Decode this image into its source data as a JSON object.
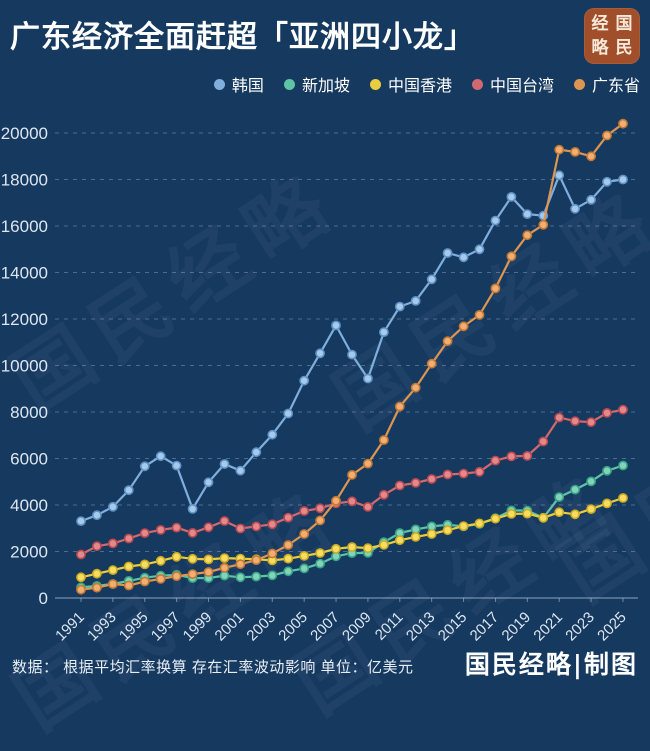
{
  "header": {
    "title": "广东经济全面赶超「亚洲四小龙」"
  },
  "seal": {
    "name": "国民经略",
    "chars": [
      "经",
      "国",
      "略",
      "民"
    ],
    "bg_color": "#a04f2a"
  },
  "watermark": {
    "text": "国民经略"
  },
  "legend": {
    "items": [
      "韩国",
      "新加坡",
      "中国香港",
      "中国台湾",
      "广东省"
    ]
  },
  "footer": {
    "note": "数据： 根据平均汇率换算 存在汇率波动影响 单位：亿美元",
    "credit": "国民经略|制图"
  },
  "chart_data": {
    "type": "line",
    "title": "广东经济全面赶超「亚洲四小龙」",
    "unit": "亿美元",
    "legend_position": "top-right",
    "grid": "horizontal-dashed",
    "ylim": [
      0,
      20000
    ],
    "ytick_step": 2000,
    "x": [
      1991,
      1992,
      1993,
      1994,
      1995,
      1996,
      1997,
      1998,
      1999,
      2000,
      2001,
      2002,
      2003,
      2004,
      2005,
      2006,
      2007,
      2008,
      2009,
      2010,
      2011,
      2012,
      2013,
      2014,
      2015,
      2016,
      2017,
      2018,
      2019,
      2020,
      2021,
      2022,
      2023,
      2024,
      2025
    ],
    "x_tick_labels": [
      "1991",
      "1993",
      "1995",
      "1997",
      "1999",
      "2001",
      "2003",
      "2005",
      "2007",
      "2009",
      "2011",
      "2013",
      "2015",
      "2017",
      "2019",
      "2021",
      "2023",
      "2025"
    ],
    "series": [
      {
        "name": "韩国",
        "line_color": "#7fafdc",
        "marker_fill": "#a9c9e8",
        "marker_stroke": "#5d93c9",
        "values": [
          3308,
          3560,
          3922,
          4635,
          5664,
          6100,
          5696,
          3833,
          4976,
          5763,
          5477,
          6271,
          7025,
          7936,
          9347,
          10524,
          11726,
          10468,
          9439,
          11438,
          12535,
          12779,
          13706,
          14839,
          14653,
          15000,
          16233,
          17252,
          16510,
          16441,
          18180,
          16739,
          17128,
          17900,
          18000
        ]
      },
      {
        "name": "新加坡",
        "line_color": "#5fc4a5",
        "marker_fill": "#85d2b8",
        "marker_stroke": "#35a587",
        "values": [
          455,
          520,
          600,
          735,
          872,
          960,
          1000,
          856,
          860,
          960,
          890,
          920,
          970,
          1150,
          1273,
          1479,
          1793,
          1933,
          1941,
          2399,
          2795,
          2952,
          3078,
          3147,
          3081,
          3187,
          3434,
          3767,
          3757,
          3450,
          4340,
          4664,
          5013,
          5470,
          5700
        ]
      },
      {
        "name": "中国香港",
        "line_color": "#e9cd3f",
        "marker_fill": "#f6dc63",
        "marker_stroke": "#cdac20",
        "values": [
          889,
          1044,
          1202,
          1355,
          1446,
          1600,
          1774,
          1687,
          1659,
          1716,
          1695,
          1663,
          1617,
          1691,
          1810,
          1936,
          2115,
          2195,
          2143,
          2286,
          2484,
          2626,
          2754,
          2914,
          3093,
          3208,
          3411,
          3617,
          3631,
          3449,
          3691,
          3598,
          3822,
          4070,
          4300
        ]
      },
      {
        "name": "中国台湾",
        "line_color": "#d2696e",
        "marker_fill": "#e2898d",
        "marker_stroke": "#bb4a50",
        "values": [
          1870,
          2230,
          2350,
          2560,
          2790,
          2930,
          3030,
          2800,
          3040,
          3310,
          2990,
          3080,
          3170,
          3460,
          3740,
          3860,
          4070,
          4160,
          3920,
          4440,
          4840,
          4950,
          5120,
          5310,
          5350,
          5430,
          5910,
          6090,
          6110,
          6730,
          7760,
          7610,
          7560,
          7960,
          8100
        ]
      },
      {
        "name": "广东省",
        "line_color": "#dd9552",
        "marker_fill": "#f0ad74",
        "marker_stroke": "#c27a33",
        "values": [
          356,
          444,
          602,
          536,
          711,
          822,
          938,
          1030,
          1117,
          1297,
          1454,
          1631,
          1914,
          2278,
          2754,
          3336,
          4181,
          5294,
          5781,
          6797,
          8237,
          9044,
          10077,
          11044,
          11688,
          12177,
          13316,
          14695,
          15605,
          16052,
          19283,
          19185,
          19000,
          19892,
          20400
        ]
      }
    ]
  }
}
